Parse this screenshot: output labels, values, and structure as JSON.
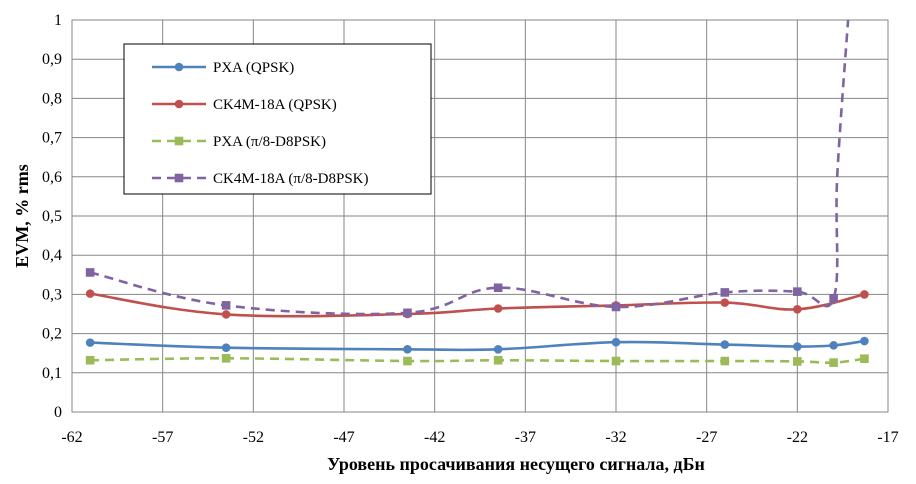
{
  "chart_data": {
    "type": "line",
    "title": "",
    "xlabel": "Уровень просачивания несущего сигнала, дБн",
    "ylabel": "EVM, % rms",
    "xlim": [
      -62,
      -17
    ],
    "ylim": [
      0,
      1
    ],
    "x_ticks": [
      "-62",
      "-57",
      "-52",
      "-47",
      "-42",
      "-37",
      "-32",
      "-27",
      "-22",
      "-17"
    ],
    "y_ticks": [
      "0",
      "0,1",
      "0,2",
      "0,3",
      "0,4",
      "0,5",
      "0,6",
      "0,7",
      "0,8",
      "0,9",
      "1"
    ],
    "grid": true,
    "legend_position": "top-left",
    "series": [
      {
        "name": "PXA (QPSK)",
        "color": "#4f81bd",
        "dash": "solid",
        "marker": "circle",
        "x": [
          -61,
          -53.5,
          -43.5,
          -38.5,
          -32,
          -26,
          -22,
          -20,
          -18.3
        ],
        "y": [
          0.177,
          0.164,
          0.16,
          0.16,
          0.178,
          0.172,
          0.167,
          0.17,
          0.181
        ]
      },
      {
        "name": "CK4M-18A (QPSK)",
        "color": "#c0504d",
        "dash": "solid",
        "marker": "circle",
        "x": [
          -61,
          -53.5,
          -43.5,
          -38.5,
          -32,
          -26,
          -22,
          -18.3
        ],
        "y": [
          0.302,
          0.249,
          0.25,
          0.264,
          0.272,
          0.279,
          0.262,
          0.3
        ]
      },
      {
        "name": "PXA (π/8-D8PSK)",
        "color": "#9bbb59",
        "dash": "dashed",
        "marker": "square",
        "x": [
          -61,
          -53.5,
          -43.5,
          -38.5,
          -32,
          -26,
          -22,
          -20,
          -18.3
        ],
        "y": [
          0.132,
          0.137,
          0.13,
          0.132,
          0.13,
          0.13,
          0.129,
          0.126,
          0.136
        ]
      },
      {
        "name": "CK4M-18A (π/8-D8PSK)",
        "color": "#8064a2",
        "dash": "dashed",
        "marker": "square",
        "x": [
          -61,
          -53.5,
          -43.5,
          -38.5,
          -32,
          -26,
          -22,
          -20,
          -19.8,
          -19.2
        ],
        "y": [
          0.356,
          0.272,
          0.253,
          0.317,
          0.268,
          0.305,
          0.307,
          0.29,
          0.6,
          1.0
        ],
        "marker_points": 8
      }
    ]
  }
}
